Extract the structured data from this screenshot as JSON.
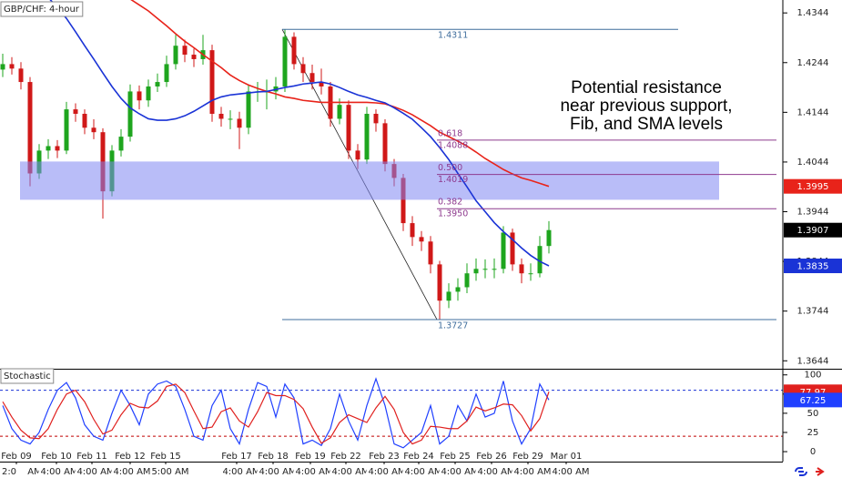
{
  "chart_data": [
    {
      "type": "candlestick",
      "title": "GBP/CHF: 4-hour",
      "xlim": [
        0,
        86
      ],
      "ylim": [
        1.3628,
        1.437
      ],
      "yticks": [
        1.3644,
        1.3744,
        1.3844,
        1.3944,
        1.4044,
        1.4144,
        1.4244,
        1.4344
      ],
      "grid": false,
      "up_color": "#1ea51e",
      "down_color": "#d01818",
      "candles": {
        "open": [
          1.423,
          1.4241,
          1.4232,
          1.4205,
          1.4021,
          1.4067,
          1.4076,
          1.4067,
          1.415,
          1.4141,
          1.4113,
          1.4104,
          1.3985,
          1.4067,
          1.4095,
          1.4186,
          1.4168,
          1.4196,
          1.4205,
          1.4241,
          1.4278,
          1.426,
          1.4251,
          1.4269,
          1.4141,
          1.4131,
          1.4131,
          1.4113,
          1.4186,
          1.4186,
          1.4186,
          1.4196,
          1.4296,
          1.4241,
          1.4223,
          1.4205,
          1.4196,
          1.4131,
          1.4159,
          1.4067,
          1.4049,
          1.4141,
          1.4122,
          1.404,
          1.4012,
          1.3921,
          1.3893,
          1.3884,
          1.3838,
          1.3765,
          1.3783,
          1.3792,
          1.382,
          1.3829,
          1.3829,
          1.3829,
          1.3902,
          1.3838,
          1.382,
          1.382,
          1.3875
        ],
        "high": [
          1.4262,
          1.4255,
          1.4245,
          1.4215,
          1.408,
          1.409,
          1.4088,
          1.4165,
          1.4162,
          1.415,
          1.413,
          1.4112,
          1.4078,
          1.411,
          1.42,
          1.4198,
          1.421,
          1.4222,
          1.4258,
          1.43,
          1.429,
          1.4272,
          1.43,
          1.428,
          1.4155,
          1.4148,
          1.4145,
          1.42,
          1.4205,
          1.421,
          1.4215,
          1.4311,
          1.4305,
          1.4255,
          1.424,
          1.4232,
          1.4205,
          1.4172,
          1.4168,
          1.408,
          1.4155,
          1.415,
          1.413,
          1.405,
          1.402,
          1.3935,
          1.3905,
          1.3895,
          1.3845,
          1.38,
          1.381,
          1.384,
          1.385,
          1.3848,
          1.385,
          1.3915,
          1.391,
          1.385,
          1.384,
          1.3895,
          1.3925
        ],
        "low": [
          1.4215,
          1.422,
          1.419,
          1.3995,
          1.401,
          1.405,
          1.4052,
          1.406,
          1.4125,
          1.41,
          1.409,
          1.393,
          1.3975,
          1.4055,
          1.4085,
          1.415,
          1.4155,
          1.4185,
          1.4195,
          1.423,
          1.4245,
          1.4235,
          1.424,
          1.4125,
          1.4115,
          1.411,
          1.407,
          1.41,
          1.4165,
          1.415,
          1.417,
          1.4185,
          1.423,
          1.4205,
          1.419,
          1.418,
          1.4115,
          1.412,
          1.405,
          1.403,
          1.404,
          1.4105,
          1.4025,
          1.3995,
          1.3905,
          1.3875,
          1.3865,
          1.382,
          1.3727,
          1.375,
          1.3765,
          1.378,
          1.3805,
          1.381,
          1.381,
          1.382,
          1.3825,
          1.38,
          1.3805,
          1.3812,
          1.386
        ],
        "close": [
          1.4241,
          1.4232,
          1.4205,
          1.4021,
          1.4067,
          1.4076,
          1.4067,
          1.415,
          1.4141,
          1.4113,
          1.4104,
          1.3985,
          1.4067,
          1.4095,
          1.4186,
          1.4168,
          1.4196,
          1.4205,
          1.4241,
          1.4278,
          1.426,
          1.4251,
          1.4269,
          1.4141,
          1.4131,
          1.4131,
          1.4113,
          1.4186,
          1.4186,
          1.4186,
          1.4196,
          1.4296,
          1.4241,
          1.4223,
          1.4205,
          1.4196,
          1.4131,
          1.4159,
          1.4067,
          1.4049,
          1.4141,
          1.4122,
          1.404,
          1.4012,
          1.3921,
          1.3893,
          1.3884,
          1.3838,
          1.3765,
          1.3783,
          1.3792,
          1.382,
          1.3829,
          1.3829,
          1.3829,
          1.3902,
          1.3838,
          1.382,
          1.382,
          1.3875,
          1.3907
        ]
      },
      "sma": [
        {
          "color": "#e8231a",
          "values": [
            null,
            null,
            null,
            null,
            null,
            null,
            null,
            null,
            null,
            null,
            null,
            null,
            null,
            null,
            1.4372,
            1.436,
            1.4348,
            1.4333,
            1.4318,
            1.4302,
            1.4287,
            1.4274,
            1.426,
            1.4247,
            1.4234,
            1.4219,
            1.4208,
            1.4199,
            1.4192,
            1.4186,
            1.4181,
            1.4175,
            1.4172,
            1.4168,
            1.4166,
            1.4164,
            1.4164,
            1.4164,
            1.4164,
            1.4164,
            1.4164,
            1.4163,
            1.4161,
            1.4155,
            1.4148,
            1.4139,
            1.4128,
            1.4117,
            1.4104,
            1.4095,
            1.4086,
            1.4076,
            1.4064,
            1.4051,
            1.404,
            1.4029,
            1.402,
            1.4012,
            1.4007,
            1.4001,
            1.3995
          ]
        },
        {
          "color": "#1a33d6",
          "values": [
            null,
            null,
            null,
            null,
            null,
            1.4375,
            1.4355,
            1.4333,
            1.4306,
            1.4278,
            1.4251,
            1.4223,
            1.4196,
            1.4172,
            1.4153,
            1.4141,
            1.4131,
            1.4128,
            1.4128,
            1.4131,
            1.4137,
            1.4146,
            1.4157,
            1.4168,
            1.4175,
            1.4179,
            1.4181,
            1.4183,
            1.4185,
            1.4186,
            1.419,
            1.4194,
            1.4197,
            1.4201,
            1.4203,
            1.4205,
            1.4201,
            1.4194,
            1.4186,
            1.4179,
            1.4174,
            1.4168,
            1.4163,
            1.4153,
            1.4142,
            1.413,
            1.4113,
            1.4095,
            1.4073,
            1.4049,
            1.4021,
            1.3994,
            1.3966,
            1.3944,
            1.3922,
            1.3904,
            1.3888,
            1.3871,
            1.3856,
            1.3844,
            1.3835
          ]
        }
      ],
      "zone": [
        1.3968,
        1.4045
      ],
      "zone_color": "#7f86f2",
      "fib": {
        "swing_high": 1.4311,
        "swing_low": 1.3727,
        "swing_color": "#3f6d9c",
        "level_color": "#8e3a8e",
        "levels": [
          {
            "ratio": 0.618,
            "price": 1.4088
          },
          {
            "ratio": {
              "value": 0.5,
              "label": "0.500"
            },
            "price": 1.4019
          },
          {
            "ratio": 0.382,
            "price": {
              "value": 1.395,
              "label": "1.3950"
            }
          }
        ]
      },
      "price_markers": [
        {
          "value": 1.3995,
          "color": "#e8231a"
        },
        {
          "value": 1.3907,
          "color": "#000000"
        },
        {
          "value": 1.3835,
          "color": "#1a33d6"
        }
      ],
      "annotation": [
        "Potential resistance",
        "near previous support,",
        "Fib, and SMA levels"
      ]
    },
    {
      "type": "line",
      "title": "Stochastic",
      "xlim": [
        0,
        86
      ],
      "ylim": [
        -13,
        108
      ],
      "yticks": [
        0,
        25,
        50,
        75,
        100
      ],
      "levels": [
        20,
        80
      ],
      "level_colors": [
        "#c00000",
        "#1a33d6"
      ],
      "series": [
        {
          "color": "#2040ff",
          "values": [
            60,
            30,
            15,
            10,
            25,
            55,
            80,
            90,
            70,
            35,
            20,
            15,
            50,
            80,
            60,
            35,
            75,
            88,
            92,
            85,
            55,
            20,
            15,
            60,
            80,
            30,
            10,
            55,
            90,
            85,
            45,
            88,
            70,
            10,
            15,
            8,
            30,
            75,
            40,
            15,
            60,
            95,
            60,
            10,
            5,
            15,
            25,
            60,
            10,
            20,
            60,
            40,
            75,
            45,
            50,
            92,
            40,
            10,
            30,
            88,
            67.25
          ]
        },
        {
          "color": "#e0201e",
          "values": [
            65,
            45,
            28,
            18,
            17,
            30,
            55,
            75,
            80,
            65,
            42,
            23,
            28,
            48,
            63,
            58,
            57,
            66,
            85,
            88,
            77,
            53,
            30,
            32,
            52,
            57,
            40,
            32,
            52,
            77,
            73,
            73,
            68,
            56,
            32,
            11,
            18,
            38,
            48,
            43,
            38,
            57,
            72,
            55,
            25,
            10,
            15,
            33,
            32,
            30,
            30,
            40,
            58,
            53,
            57,
            62,
            61,
            47,
            27,
            43,
            77.97
          ]
        }
      ],
      "value_markers": [
        {
          "value": 77.97,
          "color": "#e0201e"
        },
        {
          "value": 67.25,
          "color": "#2040ff"
        }
      ],
      "xticks": [
        {
          "value": 1.8,
          "label": "Feb 09"
        },
        {
          "value": 6.2,
          "label": "Feb 10"
        },
        {
          "value": 10.1,
          "label": "Feb 11"
        },
        {
          "value": 14.3,
          "label": "Feb 12"
        },
        {
          "value": 18.2,
          "label": "Feb 15"
        },
        {
          "value": 26,
          "label": "Feb 17"
        },
        {
          "value": 30,
          "label": "Feb 18"
        },
        {
          "value": 34.1,
          "label": "Feb 19"
        },
        {
          "value": 38,
          "label": "Feb 22"
        },
        {
          "value": 42.2,
          "label": "Feb 23"
        },
        {
          "value": 46,
          "label": "Feb 24"
        },
        {
          "value": 50,
          "label": "Feb 25"
        },
        {
          "value": 54,
          "label": "Feb 26"
        },
        {
          "value": 58,
          "label": "Feb 29"
        },
        {
          "value": 62.2,
          "label": "Mar 01"
        }
      ],
      "time_labels": [
        {
          "value": 1.0,
          "label": "2:0"
        },
        {
          "value": 3.8,
          "label": "AM"
        },
        {
          "value": 6.5,
          "label": "4:00 AM"
        },
        {
          "value": 10.5,
          "label": "4:00 AM"
        },
        {
          "value": 14.5,
          "label": "4:00 AM"
        },
        {
          "value": 18.7,
          "label": "5:00 AM"
        },
        {
          "value": 26.5,
          "label": "4:00 AM"
        },
        {
          "value": 30.5,
          "label": "4:00 AM"
        },
        {
          "value": 34.5,
          "label": "4:00 AM"
        },
        {
          "value": 38.5,
          "label": "4:00 AM"
        },
        {
          "value": 42.5,
          "label": "4:00 AM"
        },
        {
          "value": 46.5,
          "label": "4:00 AM"
        },
        {
          "value": 50.5,
          "label": "4:00 AM"
        },
        {
          "value": 54.5,
          "label": "4:00 AM"
        },
        {
          "value": 58.5,
          "label": "4:00 AM"
        },
        {
          "value": 62.7,
          "label": "4:00 AM"
        }
      ]
    }
  ]
}
